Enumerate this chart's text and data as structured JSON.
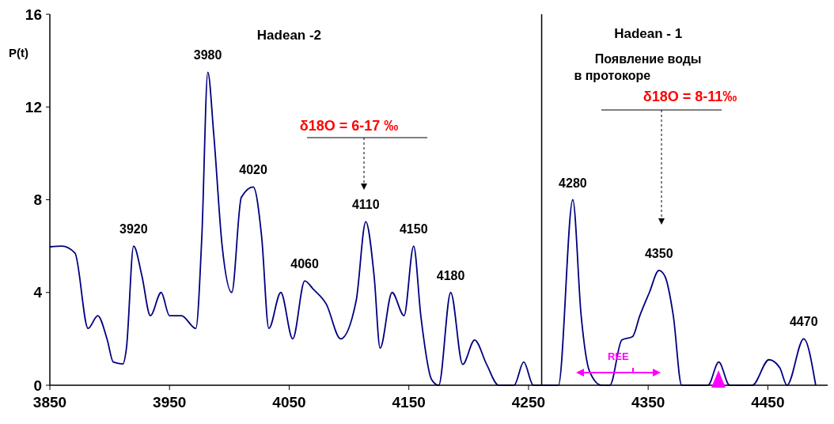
{
  "chart_data": {
    "type": "line",
    "ylabel": "P(t)",
    "x": [
      3850,
      3860,
      3871,
      3882,
      3890,
      3898,
      3903,
      3911,
      3914,
      3920,
      3927,
      3934,
      3943,
      3950,
      3960,
      3972,
      3977,
      3982,
      3987,
      3994,
      4002,
      4010,
      4020,
      4027,
      4033,
      4043,
      4053,
      4063,
      4070,
      4081,
      4093,
      4106,
      4114,
      4121,
      4126,
      4136,
      4146,
      4154,
      4160,
      4169,
      4175,
      4185,
      4195,
      4205,
      4215,
      4225,
      4238,
      4246,
      4254,
      4275,
      4287,
      4294,
      4301,
      4311,
      4318,
      4328,
      4337,
      4343,
      4351,
      4359,
      4364,
      4371,
      4378,
      4400,
      4409,
      4418,
      4437,
      4451,
      4460,
      4466,
      4480,
      4490
    ],
    "series": [
      {
        "color": "#000080",
        "values": [
          5.97,
          6.0,
          5.7,
          2.45,
          3.0,
          1.95,
          1.0,
          0.92,
          1.6,
          6.0,
          4.7,
          3.0,
          4.0,
          3.0,
          3.0,
          2.45,
          6.4,
          13.5,
          10.8,
          6.0,
          4.0,
          8.1,
          8.55,
          6.4,
          2.45,
          4.0,
          2.0,
          4.5,
          4.15,
          3.5,
          2.0,
          3.65,
          7.05,
          4.7,
          1.6,
          4.0,
          3.0,
          6.0,
          3.0,
          0.25,
          0,
          4.0,
          0.9,
          1.95,
          0.9,
          0,
          0,
          1.0,
          0,
          0,
          8.0,
          3.0,
          0.6,
          0,
          0,
          1.95,
          2.1,
          3.0,
          4.0,
          4.95,
          4.7,
          3.0,
          0,
          0,
          1.0,
          0,
          0,
          1.1,
          0.75,
          0,
          2.0,
          0
        ]
      }
    ],
    "xlim": [
      3850,
      4500
    ],
    "xticks": [
      3850,
      3950,
      4050,
      4150,
      4250,
      4350,
      4450
    ],
    "ylim": [
      0,
      16
    ],
    "yticks": [
      0,
      4,
      8,
      12,
      16
    ],
    "ref_lines": [
      {
        "axis": "x",
        "value": 4261,
        "color": "#000000"
      }
    ],
    "annotations": [
      "Hadean -2",
      "Hadean - 1",
      "Появление воды",
      "в протокоре",
      "δ18O = 6-17 ‰",
      "δ18O = 8-11‰",
      "REE",
      {
        "text": "3920",
        "x": 3920,
        "y": 6
      },
      {
        "text": "3980",
        "x": 3982,
        "y": 13.5
      },
      {
        "text": "4020",
        "x": 4020,
        "y": 8.55
      },
      {
        "text": "4060",
        "x": 4063,
        "y": 4.5
      },
      {
        "text": "4110",
        "x": 4114,
        "y": 7.05
      },
      {
        "text": "4150",
        "x": 4154,
        "y": 6
      },
      {
        "text": "4180",
        "x": 4185,
        "y": 4
      },
      {
        "text": "4280",
        "x": 4287,
        "y": 8
      },
      {
        "text": "4350",
        "x": 4359,
        "y": 4.95
      },
      {
        "text": "4470",
        "x": 4480,
        "y": 2
      }
    ],
    "grid": false,
    "marker": "none",
    "line_style": "solid"
  }
}
